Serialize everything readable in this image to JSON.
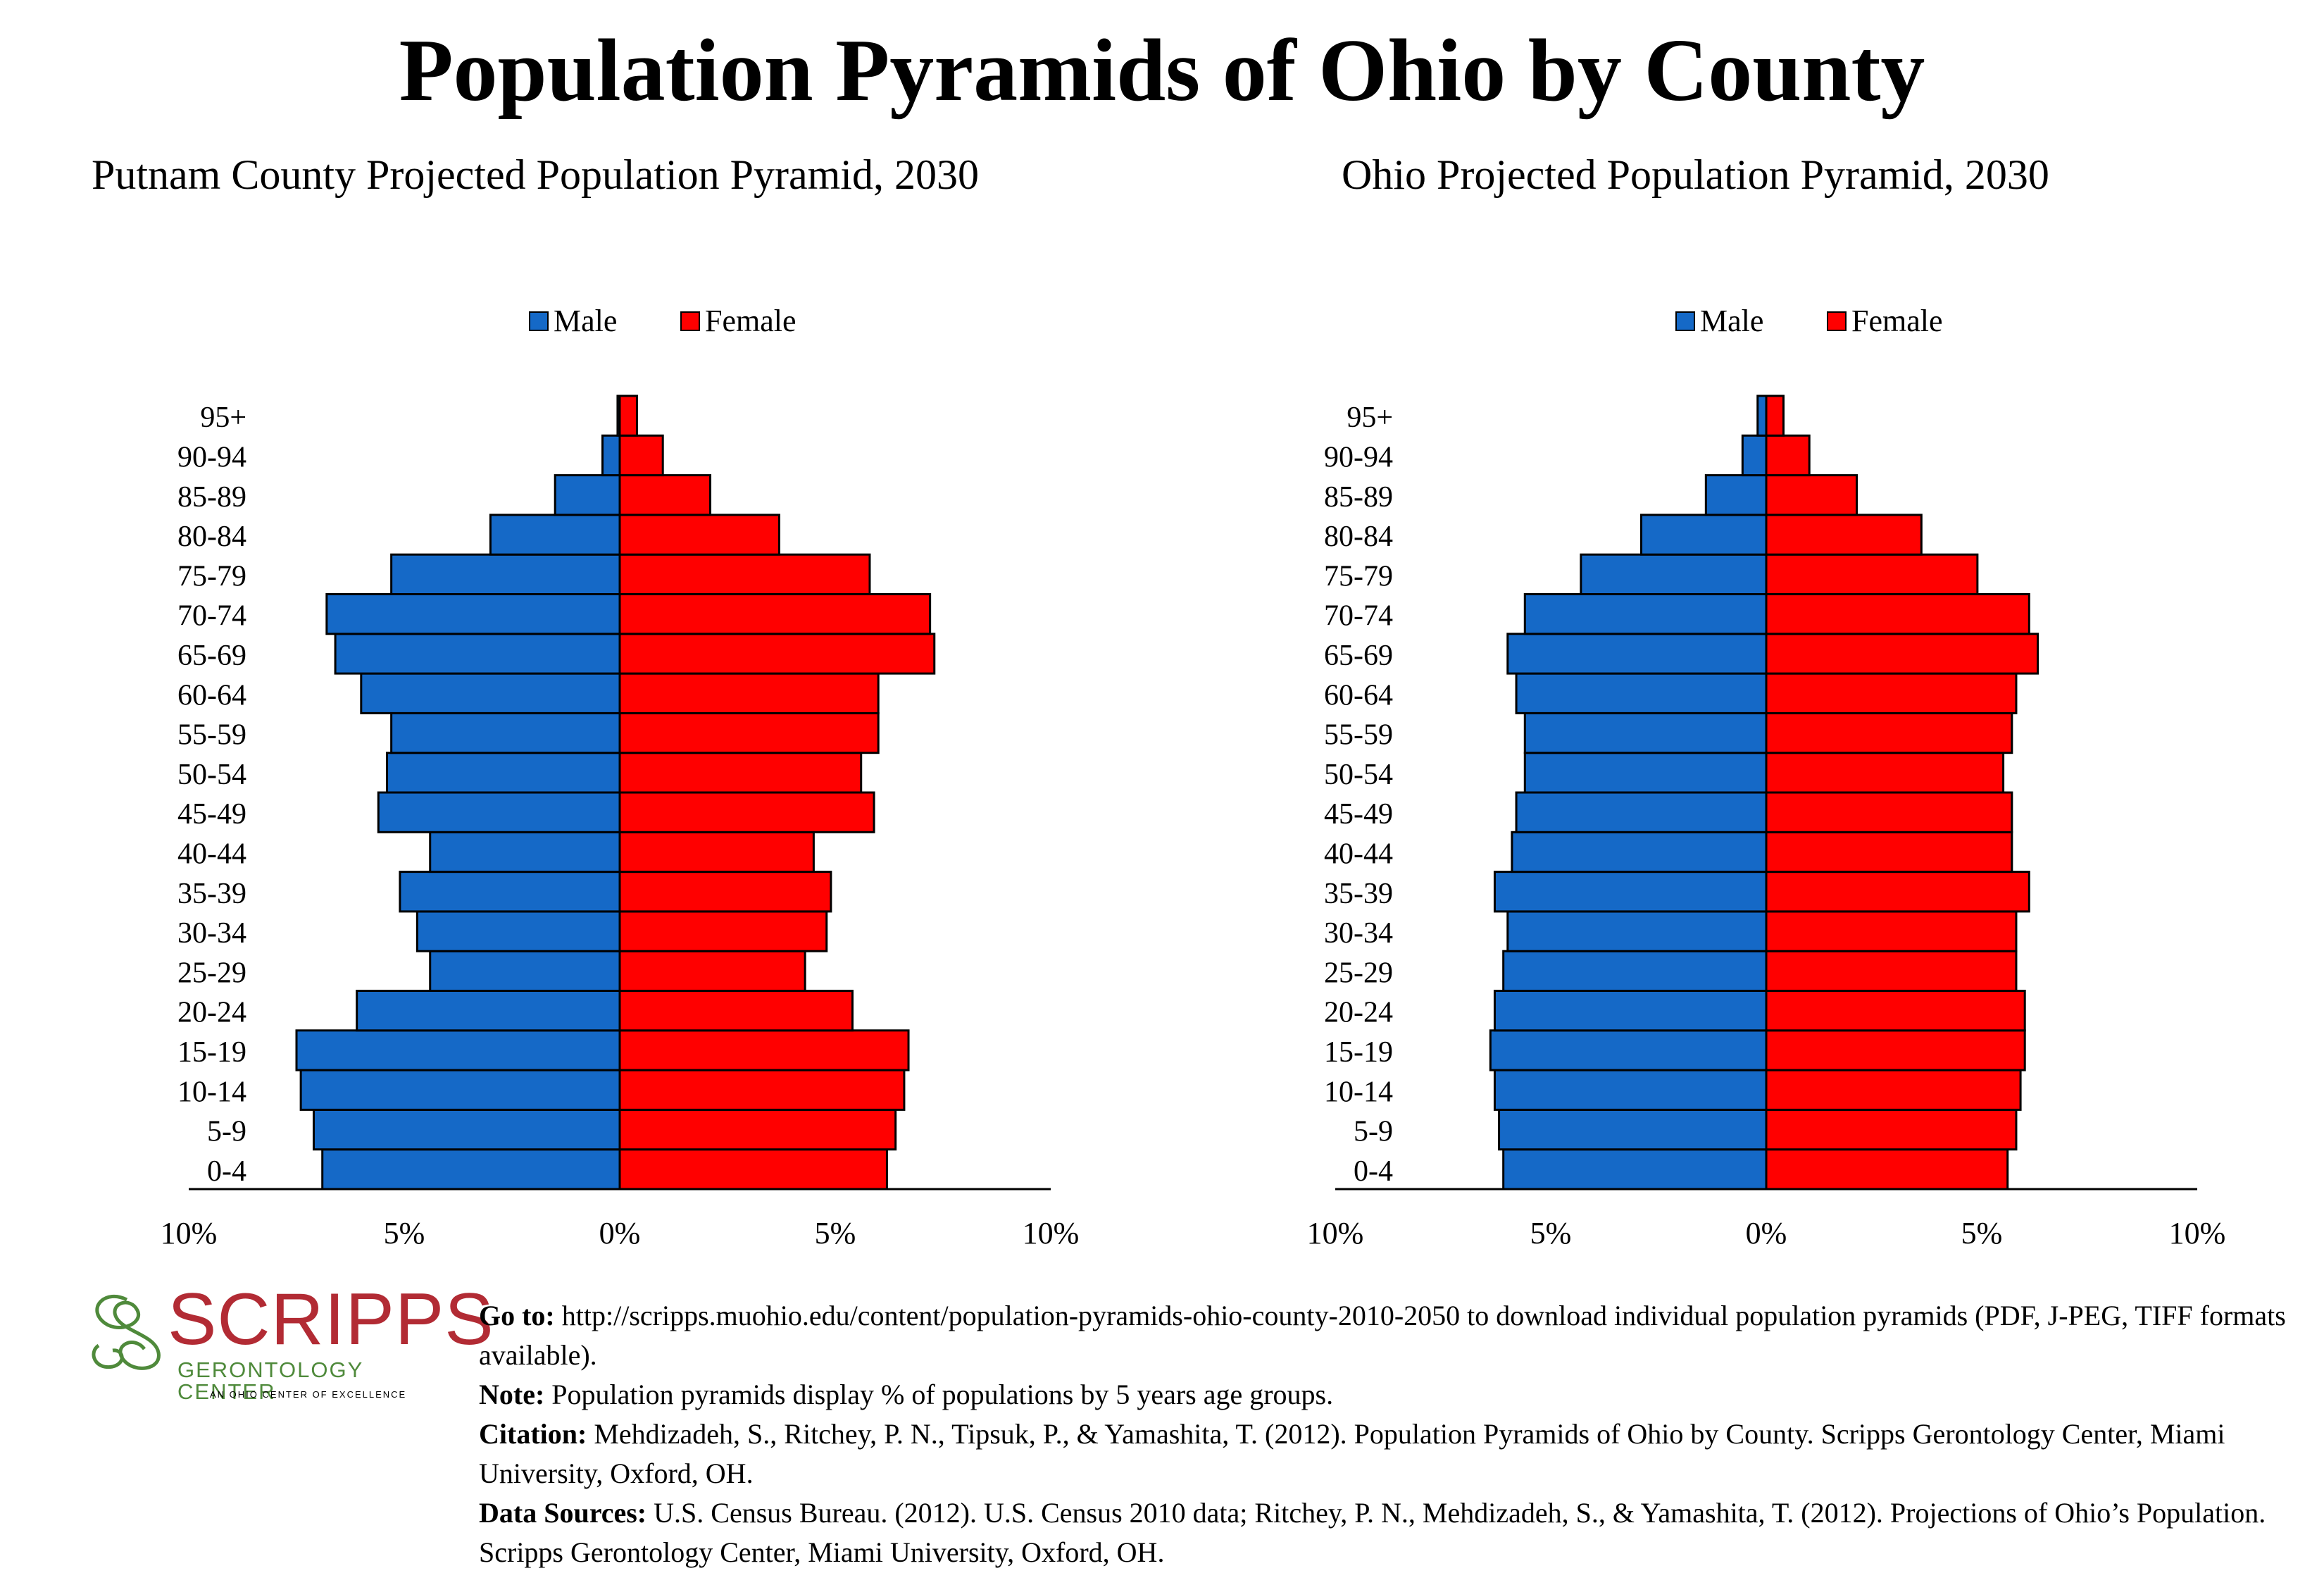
{
  "title": "Population Pyramids of Ohio by County",
  "chart_data": [
    {
      "type": "bar",
      "orientation": "horizontal-pyramid",
      "title": "Putnam County Projected Population Pyramid, 2030",
      "categories": [
        "0-4",
        "5-9",
        "10-14",
        "15-19",
        "20-24",
        "25-29",
        "30-34",
        "35-39",
        "40-44",
        "45-49",
        "50-54",
        "55-59",
        "60-64",
        "65-69",
        "70-74",
        "75-79",
        "80-84",
        "85-89",
        "90-94",
        "95+"
      ],
      "series": [
        {
          "name": "Male",
          "color": "#1569c7",
          "values": [
            6.9,
            7.1,
            7.4,
            7.5,
            6.1,
            4.4,
            4.7,
            5.1,
            4.4,
            5.6,
            5.4,
            5.3,
            6.0,
            6.6,
            6.8,
            5.3,
            3.0,
            1.5,
            0.4,
            0.05
          ]
        },
        {
          "name": "Female",
          "color": "#ff0000",
          "values": [
            6.2,
            6.4,
            6.6,
            6.7,
            5.4,
            4.3,
            4.8,
            4.9,
            4.5,
            5.9,
            5.6,
            6.0,
            6.0,
            7.3,
            7.2,
            5.8,
            3.7,
            2.1,
            1.0,
            0.4
          ]
        }
      ],
      "xlim": [
        -10,
        10
      ],
      "xticks": [
        -10,
        -5,
        0,
        5,
        10
      ],
      "xtick_labels": [
        "10%",
        "5%",
        "0%",
        "5%",
        "10%"
      ],
      "legend": "top-center",
      "grid": false
    },
    {
      "type": "bar",
      "orientation": "horizontal-pyramid",
      "title": "Ohio Projected Population Pyramid, 2030",
      "categories": [
        "0-4",
        "5-9",
        "10-14",
        "15-19",
        "20-24",
        "25-29",
        "30-34",
        "35-39",
        "40-44",
        "45-49",
        "50-54",
        "55-59",
        "60-64",
        "65-69",
        "70-74",
        "75-79",
        "80-84",
        "85-89",
        "90-94",
        "95+"
      ],
      "series": [
        {
          "name": "Male",
          "color": "#1569c7",
          "values": [
            6.1,
            6.2,
            6.3,
            6.4,
            6.3,
            6.1,
            6.0,
            6.3,
            5.9,
            5.8,
            5.6,
            5.6,
            5.8,
            6.0,
            5.6,
            4.3,
            2.9,
            1.4,
            0.55,
            0.2
          ]
        },
        {
          "name": "Female",
          "color": "#ff0000",
          "values": [
            5.6,
            5.8,
            5.9,
            6.0,
            6.0,
            5.8,
            5.8,
            6.1,
            5.7,
            5.7,
            5.5,
            5.7,
            5.8,
            6.3,
            6.1,
            4.9,
            3.6,
            2.1,
            1.0,
            0.4
          ]
        }
      ],
      "xlim": [
        -10,
        10
      ],
      "xticks": [
        -10,
        -5,
        0,
        5,
        10
      ],
      "xtick_labels": [
        "10%",
        "5%",
        "0%",
        "5%",
        "10%"
      ],
      "legend": "top-center",
      "grid": false
    }
  ],
  "logo": {
    "name": "SCRIPPS",
    "subtitle": "GERONTOLOGY CENTER",
    "tagline": "AN OHIO CENTER OF EXCELLENCE",
    "name_color": "#b22b34",
    "accent_color": "#4f8a3b"
  },
  "notes": {
    "goto_label": "Go to:",
    "goto_text": "http://scripps.muohio.edu/content/population-pyramids-ohio-county-2010-2050 to download individual population pyramids (PDF, J-PEG, TIFF formats available).",
    "note_label": "Note:",
    "note_text": "Population pyramids display % of populations by 5 years age groups.",
    "citation_label": "Citation:",
    "citation_text": "Mehdizadeh, S., Ritchey, P. N., Tipsuk, P., & Yamashita, T. (2012). Population Pyramids of Ohio by County. Scripps Gerontology Center, Miami University, Oxford, OH.",
    "sources_label": "Data Sources:",
    "sources_text": "U.S. Census Bureau. (2012). U.S. Census 2010 data; Ritchey, P. N., Mehdizadeh, S., & Yamashita, T. (2012). Projections of Ohio’s Population. Scripps Gerontology Center, Miami University, Oxford, OH."
  }
}
